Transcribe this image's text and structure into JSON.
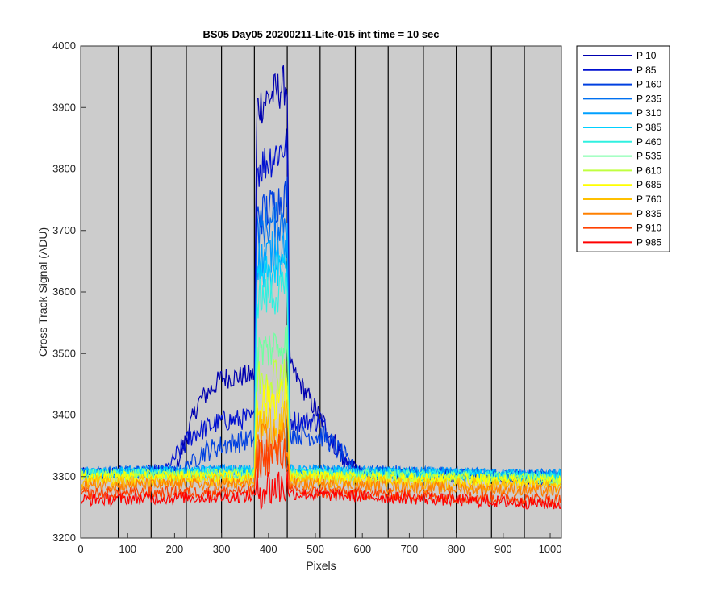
{
  "chart_data": {
    "type": "line",
    "title": "BS05 Day05 20200211-Lite-015 int time = 10 sec",
    "xlabel": "Pixels",
    "ylabel": "Cross Track Signal (ADU)",
    "xlim": [
      0,
      1024
    ],
    "ylim": [
      3200,
      4000
    ],
    "xticks": [
      0,
      100,
      200,
      300,
      400,
      500,
      600,
      700,
      800,
      900,
      1000
    ],
    "yticks": [
      3200,
      3300,
      3400,
      3500,
      3600,
      3700,
      3800,
      3900,
      4000
    ],
    "grid": "vertical lines",
    "vertical_lines_x": [
      80,
      150,
      225,
      300,
      370,
      440,
      510,
      585,
      655,
      730,
      800,
      875,
      945
    ],
    "background_color": "#cccccc",
    "legend_position": "outside top-right",
    "series": [
      {
        "name": "P 10",
        "color": "#0000b0",
        "points": [
          [
            0,
            3305
          ],
          [
            200,
            3306
          ],
          [
            250,
            3420
          ],
          [
            300,
            3460
          ],
          [
            370,
            3465
          ],
          [
            375,
            3900
          ],
          [
            440,
            3940
          ],
          [
            445,
            3480
          ],
          [
            500,
            3410
          ],
          [
            560,
            3330
          ],
          [
            600,
            3305
          ],
          [
            800,
            3300
          ],
          [
            1024,
            3295
          ]
        ]
      },
      {
        "name": "P 85",
        "color": "#0010d0",
        "points": [
          [
            0,
            3305
          ],
          [
            180,
            3310
          ],
          [
            240,
            3370
          ],
          [
            300,
            3390
          ],
          [
            370,
            3395
          ],
          [
            375,
            3800
          ],
          [
            440,
            3840
          ],
          [
            445,
            3390
          ],
          [
            510,
            3390
          ],
          [
            580,
            3310
          ],
          [
            600,
            3305
          ],
          [
            1024,
            3300
          ]
        ]
      },
      {
        "name": "P 160",
        "color": "#0040e0",
        "points": [
          [
            0,
            3305
          ],
          [
            210,
            3308
          ],
          [
            260,
            3340
          ],
          [
            320,
            3355
          ],
          [
            370,
            3360
          ],
          [
            375,
            3720
          ],
          [
            440,
            3760
          ],
          [
            445,
            3370
          ],
          [
            520,
            3365
          ],
          [
            590,
            3310
          ],
          [
            1024,
            3300
          ]
        ]
      },
      {
        "name": "P 235",
        "color": "#0070f0",
        "points": [
          [
            0,
            3306
          ],
          [
            370,
            3310
          ],
          [
            375,
            3700
          ],
          [
            440,
            3720
          ],
          [
            445,
            3310
          ],
          [
            1024,
            3302
          ]
        ]
      },
      {
        "name": "P 310",
        "color": "#00a0ff",
        "points": [
          [
            0,
            3306
          ],
          [
            370,
            3310
          ],
          [
            375,
            3650
          ],
          [
            440,
            3680
          ],
          [
            445,
            3310
          ],
          [
            1024,
            3302
          ]
        ]
      },
      {
        "name": "P 385",
        "color": "#00d0ff",
        "points": [
          [
            0,
            3304
          ],
          [
            370,
            3308
          ],
          [
            375,
            3620
          ],
          [
            440,
            3640
          ],
          [
            445,
            3308
          ],
          [
            1024,
            3300
          ]
        ]
      },
      {
        "name": "P 460",
        "color": "#30f0e0",
        "points": [
          [
            0,
            3303
          ],
          [
            370,
            3306
          ],
          [
            375,
            3590
          ],
          [
            440,
            3600
          ],
          [
            445,
            3306
          ],
          [
            1024,
            3298
          ]
        ]
      },
      {
        "name": "P 535",
        "color": "#70ffa0",
        "points": [
          [
            0,
            3302
          ],
          [
            370,
            3304
          ],
          [
            375,
            3500
          ],
          [
            440,
            3520
          ],
          [
            445,
            3304
          ],
          [
            1024,
            3296
          ]
        ]
      },
      {
        "name": "P 610",
        "color": "#c0ff40",
        "points": [
          [
            0,
            3300
          ],
          [
            370,
            3302
          ],
          [
            375,
            3460
          ],
          [
            440,
            3470
          ],
          [
            445,
            3302
          ],
          [
            1024,
            3294
          ]
        ]
      },
      {
        "name": "P 685",
        "color": "#ffff00",
        "points": [
          [
            0,
            3298
          ],
          [
            370,
            3300
          ],
          [
            375,
            3420
          ],
          [
            440,
            3430
          ],
          [
            445,
            3300
          ],
          [
            1024,
            3292
          ]
        ]
      },
      {
        "name": "P 760",
        "color": "#ffc000",
        "points": [
          [
            0,
            3292
          ],
          [
            370,
            3294
          ],
          [
            375,
            3380
          ],
          [
            440,
            3390
          ],
          [
            445,
            3294
          ],
          [
            1024,
            3284
          ]
        ]
      },
      {
        "name": "P 835",
        "color": "#ff8000",
        "points": [
          [
            0,
            3285
          ],
          [
            370,
            3288
          ],
          [
            375,
            3350
          ],
          [
            440,
            3360
          ],
          [
            445,
            3288
          ],
          [
            1024,
            3276
          ]
        ]
      },
      {
        "name": "P 910",
        "color": "#ff4000",
        "points": [
          [
            0,
            3272
          ],
          [
            370,
            3276
          ],
          [
            375,
            3330
          ],
          [
            440,
            3340
          ],
          [
            445,
            3276
          ],
          [
            1024,
            3262
          ]
        ]
      },
      {
        "name": "P 985",
        "color": "#ff0000",
        "points": [
          [
            0,
            3262
          ],
          [
            370,
            3268
          ],
          [
            375,
            3280
          ],
          [
            440,
            3285
          ],
          [
            445,
            3272
          ],
          [
            1024,
            3255
          ]
        ]
      }
    ]
  }
}
